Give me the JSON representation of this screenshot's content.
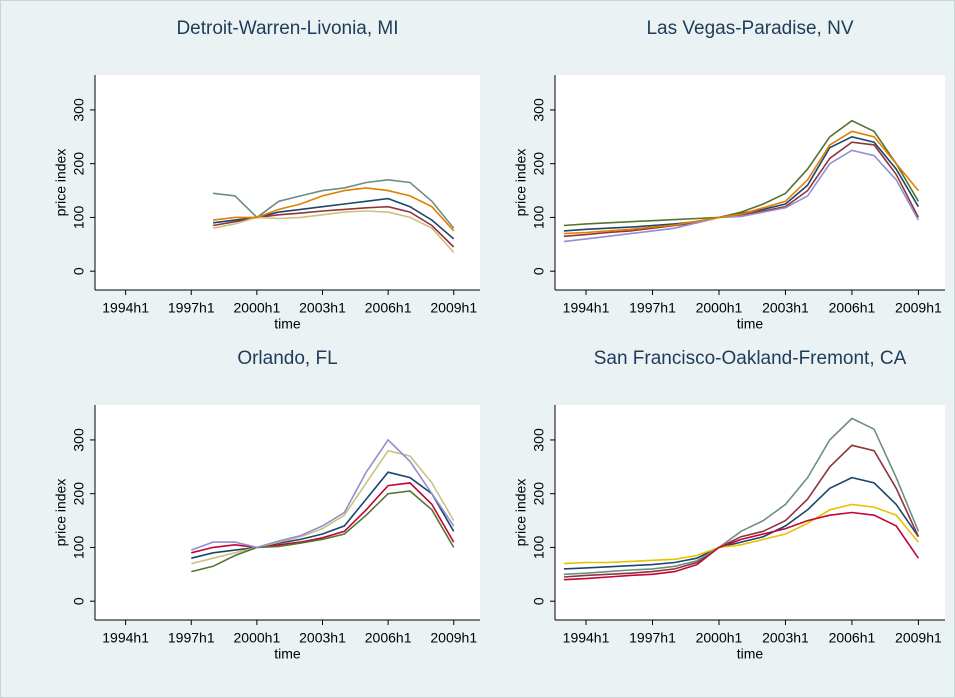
{
  "chart_data": [
    {
      "type": "line",
      "title": "Detroit-Warren-Livonia, MI",
      "y_label": "price index",
      "x_label": "time",
      "x": [
        1998,
        1999,
        2000,
        2001,
        2002,
        2003,
        2004,
        2005,
        2006,
        2007,
        2008,
        2009
      ],
      "series": [
        {
          "color": "#1a476f",
          "values": [
            90,
            95,
            100,
            110,
            115,
            120,
            125,
            130,
            135,
            120,
            95,
            60
          ]
        },
        {
          "color": "#90353b",
          "values": [
            85,
            92,
            100,
            105,
            108,
            112,
            115,
            118,
            120,
            110,
            85,
            45
          ]
        },
        {
          "color": "#6e8e84",
          "values": [
            145,
            140,
            100,
            130,
            140,
            150,
            155,
            165,
            170,
            165,
            130,
            80
          ]
        },
        {
          "color": "#cac27e",
          "values": [
            80,
            88,
            100,
            98,
            100,
            105,
            110,
            112,
            110,
            100,
            80,
            35
          ]
        },
        {
          "color": "#e37e00",
          "values": [
            95,
            100,
            100,
            115,
            125,
            140,
            150,
            155,
            150,
            140,
            120,
            75
          ]
        }
      ],
      "xlim": [
        1992.6,
        2010.2
      ],
      "ylim": [
        -35,
        365
      ],
      "xticks": [
        {
          "value": 1994,
          "label": "1994h1"
        },
        {
          "value": 1997,
          "label": "1997h1"
        },
        {
          "value": 2000,
          "label": "2000h1"
        },
        {
          "value": 2003,
          "label": "2003h1"
        },
        {
          "value": 2006,
          "label": "2006h1"
        },
        {
          "value": 2009,
          "label": "2009h1"
        }
      ],
      "yticks": [
        0,
        100,
        200,
        300
      ]
    },
    {
      "type": "line",
      "title": "Las Vegas-Paradise, NV",
      "y_label": "price index",
      "x_label": "time",
      "x": [
        1993,
        1994,
        1995,
        1996,
        1997,
        1998,
        1999,
        2000,
        2001,
        2002,
        2003,
        2004,
        2005,
        2006,
        2007,
        2008,
        2009
      ],
      "series": [
        {
          "color": "#1a476f",
          "values": [
            75,
            78,
            80,
            82,
            85,
            88,
            92,
            100,
            108,
            115,
            125,
            160,
            230,
            250,
            240,
            190,
            120
          ]
        },
        {
          "color": "#90353b",
          "values": [
            65,
            68,
            72,
            75,
            80,
            85,
            90,
            100,
            105,
            112,
            120,
            150,
            210,
            240,
            235,
            180,
            100
          ]
        },
        {
          "color": "#55752f",
          "values": [
            85,
            88,
            90,
            92,
            94,
            96,
            98,
            100,
            110,
            125,
            145,
            190,
            250,
            280,
            260,
            200,
            130
          ]
        },
        {
          "color": "#938dd2",
          "values": [
            55,
            60,
            65,
            70,
            75,
            80,
            90,
            100,
            102,
            110,
            118,
            140,
            200,
            225,
            215,
            170,
            95
          ]
        },
        {
          "color": "#e37e00",
          "values": [
            70,
            72,
            75,
            78,
            82,
            86,
            93,
            100,
            106,
            118,
            130,
            170,
            235,
            260,
            250,
            200,
            150
          ]
        }
      ],
      "xlim": [
        1992.6,
        2010.2
      ],
      "ylim": [
        -35,
        365
      ],
      "xticks": [
        {
          "value": 1994,
          "label": "1994h1"
        },
        {
          "value": 1997,
          "label": "1997h1"
        },
        {
          "value": 2000,
          "label": "2000h1"
        },
        {
          "value": 2003,
          "label": "2003h1"
        },
        {
          "value": 2006,
          "label": "2006h1"
        },
        {
          "value": 2009,
          "label": "2009h1"
        }
      ],
      "yticks": [
        0,
        100,
        200,
        300
      ]
    },
    {
      "type": "line",
      "title": "Orlando, FL",
      "y_label": "price index",
      "x_label": "time",
      "x": [
        1997,
        1998,
        1999,
        2000,
        2001,
        2002,
        2003,
        2004,
        2005,
        2006,
        2007,
        2008,
        2009
      ],
      "series": [
        {
          "color": "#1a476f",
          "values": [
            80,
            90,
            95,
            100,
            108,
            115,
            125,
            140,
            190,
            240,
            230,
            200,
            130
          ]
        },
        {
          "color": "#c10534",
          "values": [
            90,
            100,
            105,
            100,
            105,
            110,
            118,
            130,
            170,
            215,
            220,
            180,
            110
          ]
        },
        {
          "color": "#cac27e",
          "values": [
            70,
            80,
            90,
            100,
            110,
            120,
            135,
            160,
            220,
            280,
            270,
            220,
            150
          ]
        },
        {
          "color": "#55752f",
          "values": [
            55,
            65,
            85,
            100,
            102,
            108,
            115,
            125,
            160,
            200,
            205,
            170,
            100
          ]
        },
        {
          "color": "#938dd2",
          "values": [
            95,
            110,
            110,
            100,
            112,
            122,
            140,
            165,
            240,
            300,
            260,
            200,
            140
          ]
        }
      ],
      "xlim": [
        1992.6,
        2010.2
      ],
      "ylim": [
        -35,
        365
      ],
      "xticks": [
        {
          "value": 1994,
          "label": "1994h1"
        },
        {
          "value": 1997,
          "label": "1997h1"
        },
        {
          "value": 2000,
          "label": "2000h1"
        },
        {
          "value": 2003,
          "label": "2003h1"
        },
        {
          "value": 2006,
          "label": "2006h1"
        },
        {
          "value": 2009,
          "label": "2009h1"
        }
      ],
      "yticks": [
        0,
        100,
        200,
        300
      ]
    },
    {
      "type": "line",
      "title": "San Francisco-Oakland-Fremont, CA",
      "y_label": "price index",
      "x_label": "time",
      "x": [
        1993,
        1994,
        1995,
        1996,
        1997,
        1998,
        1999,
        2000,
        2001,
        2002,
        2003,
        2004,
        2005,
        2006,
        2007,
        2008,
        2009
      ],
      "series": [
        {
          "color": "#1a476f",
          "values": [
            60,
            62,
            64,
            66,
            68,
            72,
            80,
            100,
            110,
            120,
            140,
            170,
            210,
            230,
            220,
            180,
            120
          ]
        },
        {
          "color": "#90353b",
          "values": [
            45,
            48,
            50,
            52,
            55,
            60,
            72,
            100,
            120,
            130,
            150,
            190,
            250,
            290,
            280,
            210,
            120
          ]
        },
        {
          "color": "#e8c000",
          "values": [
            70,
            72,
            72,
            74,
            76,
            78,
            85,
            100,
            105,
            115,
            125,
            145,
            170,
            180,
            175,
            160,
            110
          ]
        },
        {
          "color": "#6e8e84",
          "values": [
            50,
            52,
            55,
            58,
            60,
            65,
            75,
            100,
            130,
            150,
            180,
            230,
            300,
            340,
            320,
            230,
            130
          ]
        },
        {
          "color": "#c10534",
          "values": [
            40,
            42,
            45,
            48,
            50,
            55,
            68,
            100,
            115,
            125,
            135,
            150,
            160,
            165,
            160,
            140,
            80
          ]
        }
      ],
      "xlim": [
        1992.6,
        2010.2
      ],
      "ylim": [
        -35,
        365
      ],
      "xticks": [
        {
          "value": 1994,
          "label": "1994h1"
        },
        {
          "value": 1997,
          "label": "1997h1"
        },
        {
          "value": 2000,
          "label": "2000h1"
        },
        {
          "value": 2003,
          "label": "2003h1"
        },
        {
          "value": 2006,
          "label": "2006h1"
        },
        {
          "value": 2009,
          "label": "2009h1"
        }
      ],
      "yticks": [
        0,
        100,
        200,
        300
      ]
    }
  ]
}
